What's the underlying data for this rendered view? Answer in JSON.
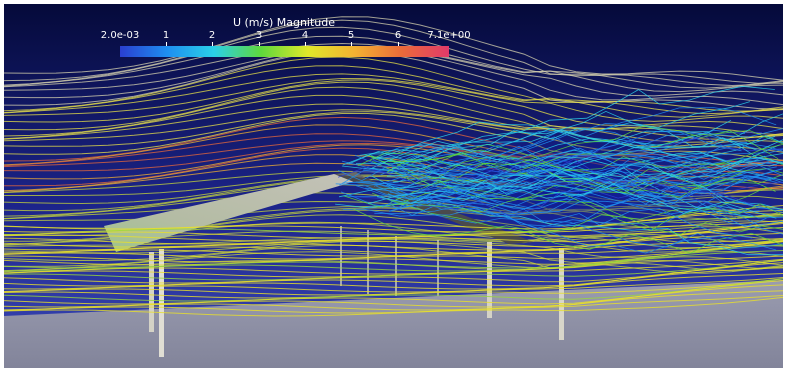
{
  "colorbar": {
    "title": "U (m/s) Magnitude",
    "min_label": "2.0e-03",
    "max_label": "7.1e+00",
    "tick_labels": [
      "1",
      "2",
      "3",
      "4",
      "5",
      "6"
    ],
    "range": [
      0.002,
      7.1
    ],
    "tick_values": [
      1,
      2,
      3,
      4,
      5,
      6
    ],
    "colormap_stops": [
      "#2a3fd0",
      "#1e8ef0",
      "#2ad0e8",
      "#5ed83c",
      "#e0e82a",
      "#f3b232",
      "#ea6a3a",
      "#e23a6a"
    ]
  },
  "colors": {
    "background_top": "#050a3a",
    "background_bottom": "#3c4ab8",
    "ground": "#8e90a6",
    "canopy_light": "#b8b8b0",
    "canopy_dark": "#4a4a4c",
    "support_post": "#d4d2c6"
  }
}
